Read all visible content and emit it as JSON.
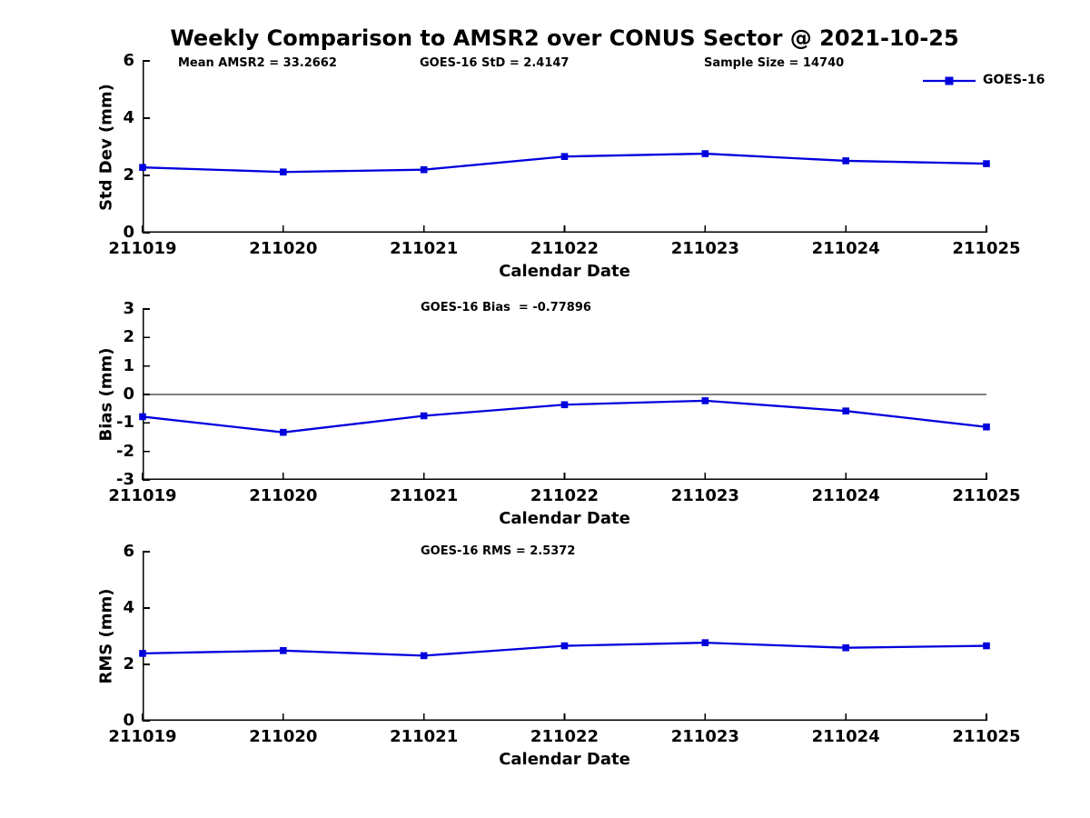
{
  "title": "Weekly Comparison to AMSR2 over CONUS Sector @ 2021-10-25",
  "legend": {
    "label": "GOES-16",
    "line_color": "#0000dd"
  },
  "x_axis_label": "Calendar Date",
  "chart_data": [
    {
      "type": "line",
      "name": "std-dev",
      "ylabel": "Std Dev (mm)",
      "xlabel": "Calendar Date",
      "ylim": [
        0,
        6
      ],
      "yticks": [
        6,
        4,
        2,
        0
      ],
      "x": [
        "211019",
        "211020",
        "211021",
        "211022",
        "211023",
        "211024",
        "211025"
      ],
      "series": [
        {
          "name": "GOES-16",
          "color": "#0000dd",
          "marker": "square",
          "values": [
            2.28,
            2.12,
            2.2,
            2.66,
            2.76,
            2.51,
            2.41
          ]
        }
      ],
      "annotations": [
        "Mean AMSR2 = 33.2662",
        "GOES-16 StD = 2.4147",
        "Sample Size = 14740"
      ],
      "legend_position": "top-right",
      "grid": false,
      "zero_line": false
    },
    {
      "type": "line",
      "name": "bias",
      "ylabel": "Bias (mm)",
      "xlabel": "Calendar Date",
      "ylim": [
        -3,
        3
      ],
      "yticks": [
        3,
        2,
        1,
        0,
        -1,
        -2,
        -3
      ],
      "x": [
        "211019",
        "211020",
        "211021",
        "211022",
        "211023",
        "211024",
        "211025"
      ],
      "series": [
        {
          "name": "GOES-16",
          "color": "#0000dd",
          "marker": "square",
          "values": [
            -0.78,
            -1.33,
            -0.75,
            -0.36,
            -0.22,
            -0.58,
            -1.14
          ]
        }
      ],
      "annotations": [
        "GOES-16 Bias  = -0.77896"
      ],
      "grid": false,
      "zero_line": true
    },
    {
      "type": "line",
      "name": "rms",
      "ylabel": "RMS (mm)",
      "xlabel": "Calendar Date",
      "ylim": [
        0,
        6
      ],
      "yticks": [
        6,
        4,
        2,
        0
      ],
      "x": [
        "211019",
        "211020",
        "211021",
        "211022",
        "211023",
        "211024",
        "211025"
      ],
      "series": [
        {
          "name": "GOES-16",
          "color": "#0000dd",
          "marker": "square",
          "values": [
            2.39,
            2.49,
            2.31,
            2.66,
            2.77,
            2.59,
            2.66
          ]
        }
      ],
      "annotations": [
        "GOES-16 RMS = 2.5372"
      ],
      "grid": false,
      "zero_line": false
    }
  ]
}
